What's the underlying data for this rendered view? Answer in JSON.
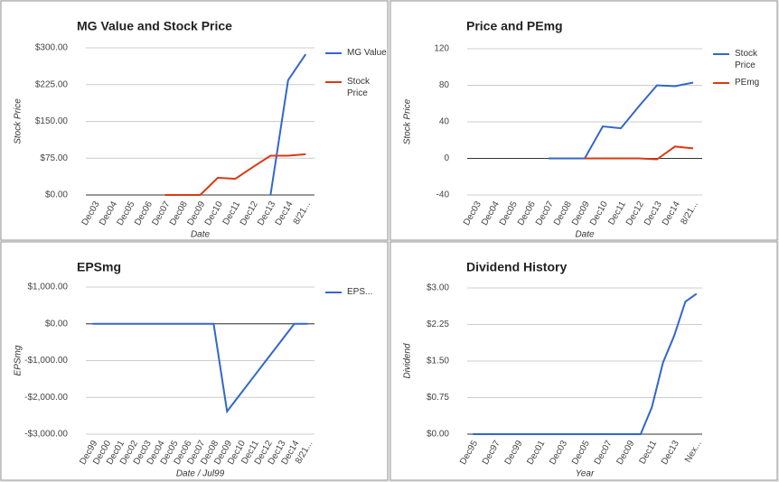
{
  "chart_data": [
    {
      "type": "line",
      "title": "MG Value and Stock Price",
      "ylabel": "Stock Price",
      "xlabel": "Date",
      "legend": "right",
      "grid": true,
      "categories": [
        "Dec03",
        "Dec04",
        "Dec05",
        "Dec06",
        "Dec07",
        "Dec08",
        "Dec09",
        "Dec10",
        "Dec11",
        "Dec12",
        "Dec13",
        "Dec14",
        "8/21..."
      ],
      "series": [
        {
          "name": "MG Value",
          "color": "#3366cc",
          "values": [
            null,
            null,
            null,
            null,
            null,
            null,
            null,
            null,
            null,
            null,
            0,
            234,
            287
          ]
        },
        {
          "name": "Stock Price",
          "color": "#dc3912",
          "values": [
            null,
            null,
            null,
            null,
            0,
            0,
            0,
            35,
            33,
            57,
            80,
            80,
            83
          ]
        }
      ],
      "ylim": [
        0,
        300
      ],
      "yticks": [
        {
          "value": 0,
          "label": "$0.00"
        },
        {
          "value": 75,
          "label": "$75.00"
        },
        {
          "value": 150,
          "label": "$150.00"
        },
        {
          "value": 225,
          "label": "$225.00"
        },
        {
          "value": 300,
          "label": "$300.00"
        }
      ]
    },
    {
      "type": "line",
      "title": "Price and PEmg",
      "ylabel": "Stock Price",
      "xlabel": "Date",
      "legend": "right",
      "grid": true,
      "categories": [
        "Dec03",
        "Dec04",
        "Dec05",
        "Dec06",
        "Dec07",
        "Dec08",
        "Dec09",
        "Dec10",
        "Dec11",
        "Dec12",
        "Dec13",
        "Dec14",
        "8/21..."
      ],
      "series": [
        {
          "name": "Stock Price",
          "color": "#3366cc",
          "values": [
            null,
            null,
            null,
            null,
            0,
            0,
            0,
            35,
            33,
            57,
            80,
            79,
            83
          ]
        },
        {
          "name": "PEmg",
          "color": "#dc3912",
          "values": [
            null,
            null,
            null,
            null,
            null,
            null,
            0,
            0,
            0,
            0,
            -1,
            13,
            11
          ]
        }
      ],
      "ylim": [
        -40,
        120
      ],
      "yticks": [
        -40,
        0,
        40,
        80,
        120
      ]
    },
    {
      "type": "line",
      "title": "EPSmg",
      "ylabel": "EPSmg",
      "xlabel": "Date / Jul99",
      "legend": "right",
      "grid": true,
      "categories": [
        "Dec99",
        "Dec00",
        "Dec01",
        "Dec02",
        "Dec03",
        "Dec04",
        "Dec05",
        "Dec06",
        "Dec07",
        "Dec08",
        "Dec09",
        "Dec10",
        "Dec11",
        "Dec12",
        "Dec13",
        "Dec14",
        "8/21..."
      ],
      "series": [
        {
          "name": "EPS...",
          "color": "#3366cc",
          "values": [
            0,
            0,
            0,
            0,
            0,
            0,
            0,
            0,
            0,
            0,
            -2380,
            -1904,
            -1428,
            -952,
            -476,
            0,
            0
          ]
        }
      ],
      "ylim": [
        -3000,
        1000
      ],
      "yticks": [
        {
          "value": -3000,
          "label": "-$3,000.00"
        },
        {
          "value": -2000,
          "label": "-$2,000.00"
        },
        {
          "value": -1000,
          "label": "-$1,000.00"
        },
        {
          "value": 0,
          "label": "$0.00"
        },
        {
          "value": 1000,
          "label": "$1,000.00"
        }
      ]
    },
    {
      "type": "line",
      "title": "Dividend History",
      "ylabel": "Dividend",
      "xlabel": "Year",
      "grid": true,
      "categories": [
        "Dec95",
        null,
        "Dec97",
        null,
        "Dec99",
        null,
        "Dec01",
        null,
        "Dec03",
        null,
        "Dec05",
        null,
        "Dec07",
        null,
        "Dec09",
        null,
        "Dec11",
        null,
        "Dec13",
        null,
        "Nex..."
      ],
      "series": [
        {
          "color": "#3366cc",
          "values": [
            0,
            0,
            0,
            0,
            0,
            0,
            0,
            0,
            0,
            0,
            0,
            0,
            0,
            0,
            0,
            0,
            0.55,
            1.47,
            2.02,
            2.72,
            2.88
          ]
        }
      ],
      "ylim": [
        0,
        3
      ],
      "yticks": [
        {
          "value": 0,
          "label": "$0.00"
        },
        {
          "value": 0.75,
          "label": "$0.75"
        },
        {
          "value": 1.5,
          "label": "$1.50"
        },
        {
          "value": 2.25,
          "label": "$2.25"
        },
        {
          "value": 3,
          "label": "$3.00"
        }
      ]
    }
  ]
}
